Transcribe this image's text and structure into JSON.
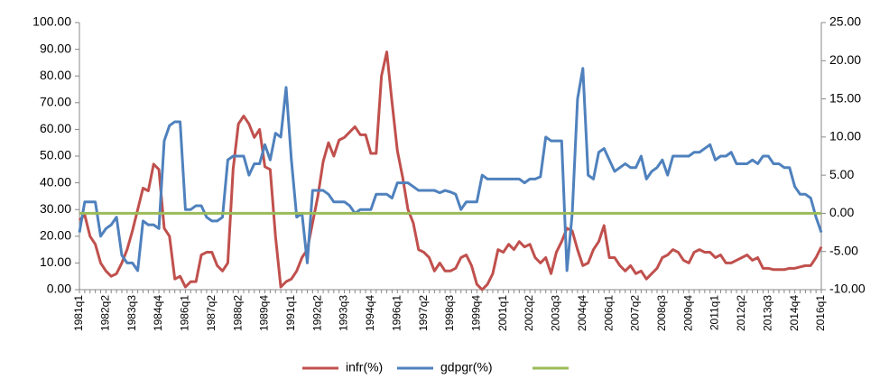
{
  "chart_data": {
    "type": "line",
    "categories": [
      "1981q1",
      null,
      null,
      null,
      null,
      "1982q2",
      null,
      null,
      null,
      null,
      "1983q3",
      null,
      null,
      null,
      null,
      "1984q4",
      null,
      null,
      null,
      null,
      "1986q1",
      null,
      null,
      null,
      null,
      "1987q2",
      null,
      null,
      null,
      null,
      "1988q2",
      null,
      null,
      null,
      null,
      "1989q4",
      null,
      null,
      null,
      null,
      "1991q1",
      null,
      null,
      null,
      null,
      "1992q2",
      null,
      null,
      null,
      null,
      "1993q3",
      null,
      null,
      null,
      null,
      "1994q4",
      null,
      null,
      null,
      null,
      "1996q1",
      null,
      null,
      null,
      null,
      "1997q2",
      null,
      null,
      null,
      null,
      "1998q3",
      null,
      null,
      null,
      null,
      "1999q4",
      null,
      null,
      null,
      null,
      "2001q1",
      null,
      null,
      null,
      null,
      "2002q2",
      null,
      null,
      null,
      null,
      "2003q3",
      null,
      null,
      null,
      null,
      "2004q4",
      null,
      null,
      null,
      null,
      "2006q1",
      null,
      null,
      null,
      null,
      "2007q2",
      null,
      null,
      null,
      null,
      "2008q3",
      null,
      null,
      null,
      null,
      "2009q4",
      null,
      null,
      null,
      null,
      "2011q1",
      null,
      null,
      null,
      null,
      "2012q2",
      null,
      null,
      null,
      null,
      "2013q3",
      null,
      null,
      null,
      null,
      "2014q4",
      null,
      null,
      null,
      null,
      "2016q1"
    ],
    "series": [
      {
        "name": "infr(%)",
        "color": "#c0504d",
        "values": [
          26,
          28,
          20,
          17,
          10,
          7,
          5,
          6,
          10,
          15,
          22,
          30,
          38,
          37,
          47,
          45,
          23,
          20,
          4,
          5,
          1,
          3,
          3,
          13,
          14,
          14,
          9,
          7,
          10,
          45,
          62,
          65,
          62,
          57,
          60,
          46,
          45,
          20,
          1,
          3,
          4,
          7,
          12,
          15,
          25,
          35,
          48,
          55,
          50,
          56,
          57,
          59,
          61,
          58,
          58,
          51,
          51,
          80,
          89,
          70,
          52,
          42,
          30,
          25,
          15,
          14,
          12,
          7,
          10,
          7,
          7,
          8,
          12,
          13,
          9,
          2,
          0,
          2,
          6,
          15,
          14,
          17,
          15,
          18,
          16,
          17,
          12,
          10,
          12,
          6,
          14,
          18,
          23,
          22,
          15,
          9,
          10,
          15,
          18,
          24,
          12,
          12,
          9,
          7,
          9,
          6,
          7,
          4,
          6,
          8,
          12,
          13,
          15,
          14,
          11,
          10,
          14,
          15,
          14,
          14,
          12,
          13,
          10,
          10,
          11,
          12,
          13,
          11,
          12,
          8,
          8,
          7.5,
          7.5,
          7.5,
          8,
          8,
          8.5,
          9,
          9,
          12,
          16
        ]
      },
      {
        "name": "gdpgr(%)",
        "color": "#4f81bd",
        "axis": "y2",
        "values": [
          -2.5,
          1.5,
          1.5,
          1.5,
          -3,
          -2,
          -1.5,
          -0.5,
          -5.5,
          -6.5,
          -6.5,
          -7.5,
          -1,
          -1.5,
          -1.5,
          -2,
          9.5,
          11.5,
          12,
          12,
          0.5,
          0.5,
          1,
          1,
          -0.5,
          -1,
          -1,
          -0.5,
          7,
          7.5,
          7.5,
          7.5,
          5,
          6.5,
          6.5,
          9,
          7,
          10.5,
          10,
          16.5,
          7,
          -0.5,
          0,
          -6.5,
          3,
          3,
          3,
          2.5,
          1.5,
          1.5,
          1.5,
          1,
          0,
          0.5,
          0.5,
          0.5,
          2.5,
          2.5,
          2.5,
          2,
          4,
          4,
          4,
          3.5,
          3,
          3,
          3,
          3,
          2.7,
          3,
          2.8,
          2.5,
          0.5,
          1.5,
          1.5,
          1.5,
          5,
          4.5,
          4.5,
          4.5,
          4.5,
          4.5,
          4.5,
          4.5,
          4,
          4.5,
          4.5,
          4.8,
          10,
          9.5,
          9.5,
          9.5,
          -7.5,
          0,
          15,
          19,
          5,
          4.5,
          8,
          8.5,
          7,
          5.5,
          6,
          6.5,
          6,
          6,
          7.5,
          4.5,
          5.5,
          6,
          7,
          5,
          7.5,
          7.5,
          7.5,
          7.5,
          8,
          8,
          8.5,
          9,
          7,
          7.5,
          7.5,
          8,
          6.5,
          6.5,
          6.5,
          7,
          6.5,
          7.5,
          7.5,
          6.5,
          6.5,
          6,
          6,
          3.5,
          2.5,
          2.5,
          2,
          -0.5,
          -2.5
        ]
      },
      {
        "color": "#9bbb59",
        "axis": "y2",
        "values": [
          0,
          0,
          0,
          0,
          0,
          0,
          0,
          0,
          0,
          0,
          0,
          0,
          0,
          0,
          0,
          0,
          0,
          0,
          0,
          0,
          0,
          0,
          0,
          0,
          0,
          0,
          0,
          0,
          0,
          0,
          0,
          0,
          0,
          0,
          0,
          0,
          0,
          0,
          0,
          0,
          0,
          0,
          0,
          0,
          0,
          0,
          0,
          0,
          0,
          0,
          0,
          0,
          0,
          0,
          0,
          0,
          0,
          0,
          0,
          0,
          0,
          0,
          0,
          0,
          0,
          0,
          0,
          0,
          0,
          0,
          0,
          0,
          0,
          0,
          0,
          0,
          0,
          0,
          0,
          0,
          0,
          0,
          0,
          0,
          0,
          0,
          0,
          0,
          0,
          0,
          0,
          0,
          0,
          0,
          0,
          0,
          0,
          0,
          0,
          0,
          0,
          0,
          0,
          0,
          0,
          0,
          0,
          0,
          0,
          0,
          0,
          0,
          0,
          0,
          0,
          0,
          0,
          0,
          0,
          0,
          0,
          0,
          0,
          0,
          0,
          0,
          0,
          0,
          0,
          0,
          0,
          0,
          0,
          0,
          0,
          0,
          0,
          0,
          0,
          0,
          0
        ]
      }
    ],
    "ylim": [
      0,
      100
    ],
    "yticks": [
      {
        "value": 0,
        "label": "0.00"
      },
      {
        "value": 10,
        "label": "10.00"
      },
      {
        "value": 20,
        "label": "20.00"
      },
      {
        "value": 30,
        "label": "30.00"
      },
      {
        "value": 40,
        "label": "40.00"
      },
      {
        "value": 50,
        "label": "50.00"
      },
      {
        "value": 60,
        "label": "60.00"
      },
      {
        "value": 70,
        "label": "70.00"
      },
      {
        "value": 80,
        "label": "80.00"
      },
      {
        "value": 90,
        "label": "90.00"
      },
      {
        "value": 100,
        "label": "100.00"
      }
    ],
    "y2lim": [
      -10,
      25
    ],
    "y2ticks": [
      {
        "value": -10,
        "label": "-10.00"
      },
      {
        "value": -5,
        "label": "-5.00"
      },
      {
        "value": 0,
        "label": "0.00"
      },
      {
        "value": 5,
        "label": "5.00"
      },
      {
        "value": 10,
        "label": "10.00"
      },
      {
        "value": 15,
        "label": "15.00"
      },
      {
        "value": 20,
        "label": "20.00"
      },
      {
        "value": 25,
        "label": "25.00"
      }
    ],
    "legend": "bottom",
    "grid": false
  }
}
